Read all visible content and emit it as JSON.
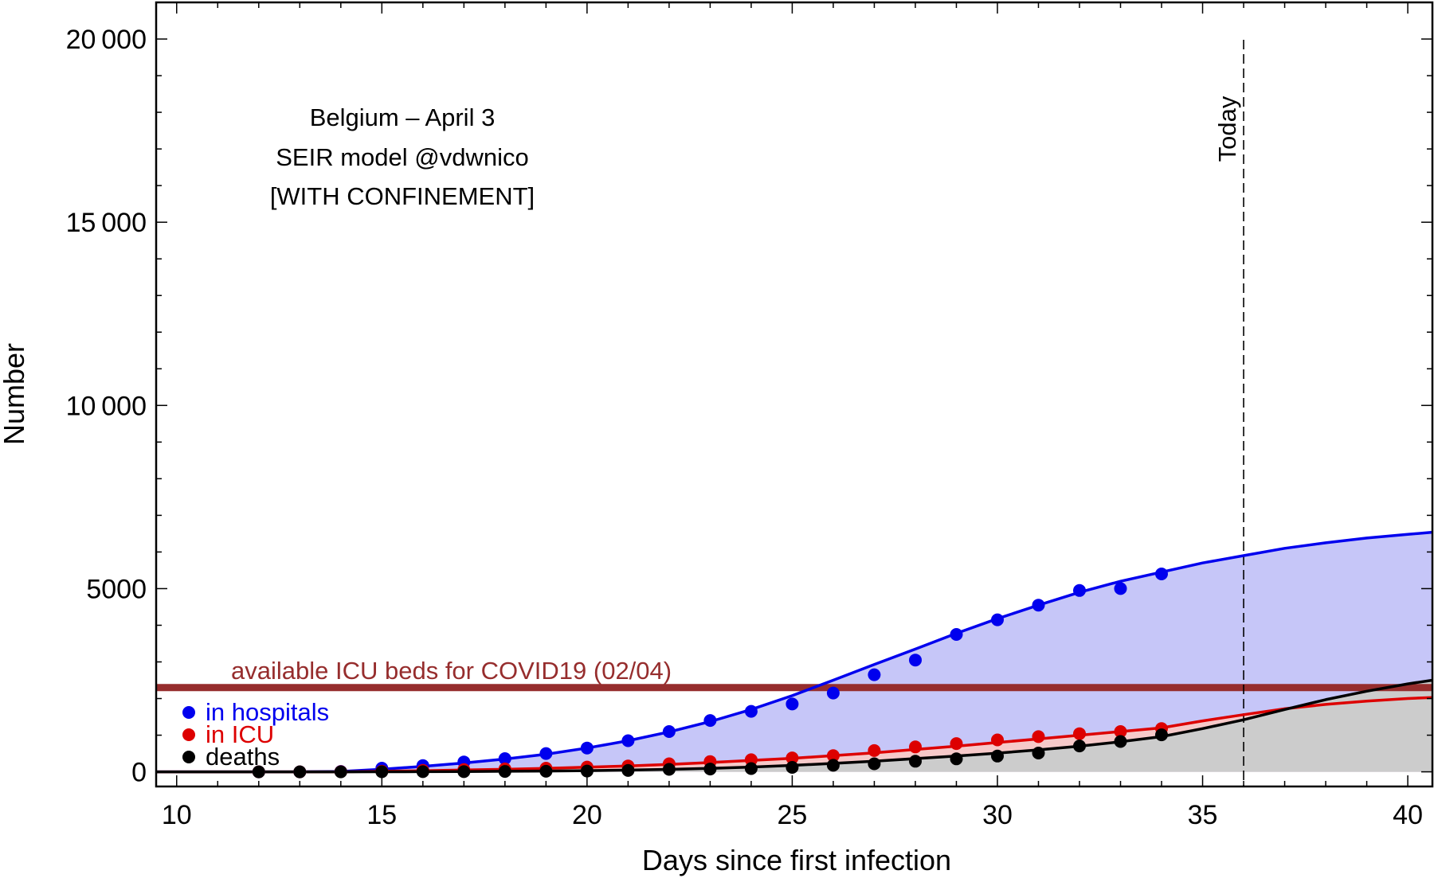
{
  "chart_data": {
    "type": "line",
    "annotation_lines": [
      "Belgium – April 3",
      "SEIR model @vdwnico",
      "[WITH CONFINEMENT]"
    ],
    "xlabel": "Days since first infection",
    "ylabel": "Number",
    "xlim": [
      9.5,
      40.6
    ],
    "ylim": [
      -400,
      21000
    ],
    "x_ticks": [
      10,
      15,
      20,
      25,
      30,
      35,
      40
    ],
    "x_tick_labels": [
      "10",
      "15",
      "20",
      "25",
      "30",
      "35",
      "40"
    ],
    "y_ticks": [
      0,
      5000,
      10000,
      15000,
      20000
    ],
    "y_tick_labels": [
      "0",
      "5000",
      "10 000",
      "15 000",
      "20 000"
    ],
    "grid": false,
    "legend_position": "bottom-left",
    "today": {
      "x": 36,
      "label": "Today"
    },
    "capacity_line": {
      "label": "available ICU beds for COVID19 (02/04)",
      "value": 2300,
      "color": "#962d2d"
    },
    "series": [
      {
        "name": "in hospitals",
        "color": "#0000ee",
        "fill": "#c6c6f8",
        "observed_x": [
          12,
          13,
          14,
          15,
          16,
          17,
          18,
          19,
          20,
          21,
          22,
          23,
          24,
          25,
          26,
          27,
          28,
          29,
          30,
          31,
          32,
          33,
          34
        ],
        "observed_y": [
          0,
          0,
          10,
          100,
          170,
          270,
          360,
          500,
          650,
          850,
          1100,
          1400,
          1650,
          1850,
          2150,
          2650,
          3050,
          3750,
          4150,
          4550,
          4950,
          5000,
          5400
        ],
        "model_x": [
          9.5,
          13,
          14,
          15,
          16,
          17,
          18,
          19,
          20,
          21,
          22,
          23,
          24,
          25,
          26,
          27,
          28,
          29,
          30,
          31,
          32,
          33,
          34,
          35,
          36,
          37,
          38,
          39,
          40,
          40.6
        ],
        "model_y": [
          0,
          0,
          10,
          70,
          150,
          240,
          350,
          480,
          650,
          850,
          1090,
          1370,
          1700,
          2080,
          2500,
          2930,
          3350,
          3780,
          4180,
          4550,
          4900,
          5200,
          5450,
          5700,
          5900,
          6100,
          6250,
          6380,
          6480,
          6540
        ]
      },
      {
        "name": "in ICU",
        "color": "#dd0000",
        "fill": "#f6c9c9",
        "observed_x": [
          12,
          13,
          14,
          15,
          16,
          17,
          18,
          19,
          20,
          21,
          22,
          23,
          24,
          25,
          26,
          27,
          28,
          29,
          30,
          31,
          32,
          33,
          34
        ],
        "observed_y": [
          0,
          0,
          5,
          15,
          40,
          60,
          80,
          100,
          130,
          160,
          220,
          280,
          330,
          380,
          440,
          580,
          680,
          770,
          870,
          960,
          1040,
          1100,
          1180
        ],
        "model_x": [
          9.5,
          13,
          14,
          15,
          16,
          17,
          18,
          19,
          20,
          21,
          22,
          23,
          24,
          25,
          26,
          27,
          28,
          29,
          30,
          31,
          32,
          33,
          34,
          35,
          36,
          37,
          38,
          39,
          40,
          40.6
        ],
        "model_y": [
          0,
          0,
          0,
          15,
          30,
          50,
          70,
          95,
          125,
          160,
          205,
          255,
          310,
          370,
          440,
          520,
          610,
          700,
          800,
          900,
          1000,
          1100,
          1200,
          1390,
          1560,
          1720,
          1840,
          1930,
          2000,
          2030
        ]
      },
      {
        "name": "deaths",
        "color": "#000000",
        "fill": "#cccccc",
        "observed_x": [
          12,
          13,
          14,
          15,
          16,
          17,
          18,
          19,
          20,
          21,
          22,
          23,
          24,
          25,
          26,
          27,
          28,
          29,
          30,
          31,
          32,
          33,
          34
        ],
        "observed_y": [
          0,
          0,
          0,
          3,
          4,
          5,
          10,
          14,
          21,
          37,
          67,
          75,
          88,
          122,
          178,
          220,
          289,
          353,
          431,
          513,
          705,
          828,
          1011
        ],
        "model_x": [
          9.5,
          13,
          14,
          15,
          16,
          17,
          18,
          19,
          20,
          21,
          22,
          23,
          24,
          25,
          26,
          27,
          28,
          29,
          30,
          31,
          32,
          33,
          34,
          35,
          36,
          37,
          38,
          39,
          40,
          40.6
        ],
        "model_y": [
          0,
          0,
          0,
          2,
          4,
          8,
          14,
          22,
          33,
          48,
          68,
          95,
          130,
          175,
          230,
          290,
          360,
          430,
          510,
          600,
          700,
          820,
          960,
          1180,
          1420,
          1700,
          1970,
          2200,
          2400,
          2500
        ]
      }
    ]
  }
}
